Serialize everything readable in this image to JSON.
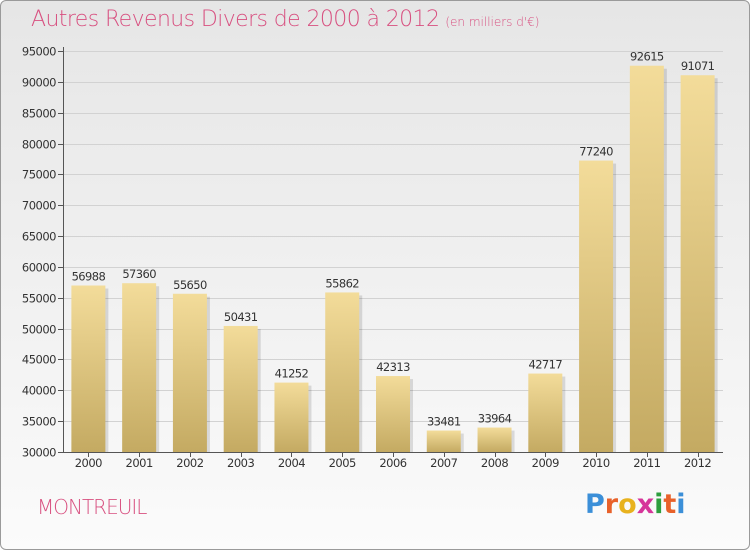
{
  "title": "Autres Revenus Divers de 2000 à 2012",
  "subtitle": "(en milliers d'€)",
  "city": "MONTREUIL",
  "logo": {
    "letters": [
      "P",
      "r",
      "o",
      "x",
      "i",
      "t",
      "i"
    ]
  },
  "colors": {
    "title": "#d85080",
    "bar_light": "#f3dc9a",
    "bar_dark": "#c4aa62",
    "grid": "#d2d2d2",
    "axis": "#555555",
    "label": "#333333"
  },
  "chart_data": {
    "type": "bar",
    "title": "Autres Revenus Divers de 2000 à 2012",
    "subtitle": "(en milliers d'€)",
    "xlabel": "",
    "ylabel": "",
    "categories": [
      "2000",
      "2001",
      "2002",
      "2003",
      "2004",
      "2005",
      "2006",
      "2007",
      "2008",
      "2009",
      "2010",
      "2011",
      "2012"
    ],
    "values": [
      56988,
      57360,
      55650,
      50431,
      41252,
      55862,
      42313,
      33481,
      33964,
      42717,
      77240,
      92615,
      91071
    ],
    "ylim": [
      30000,
      95000
    ],
    "yticks": [
      30000,
      35000,
      40000,
      45000,
      50000,
      55000,
      60000,
      65000,
      70000,
      75000,
      80000,
      85000,
      90000,
      95000
    ],
    "grid": true,
    "legend": "none"
  }
}
